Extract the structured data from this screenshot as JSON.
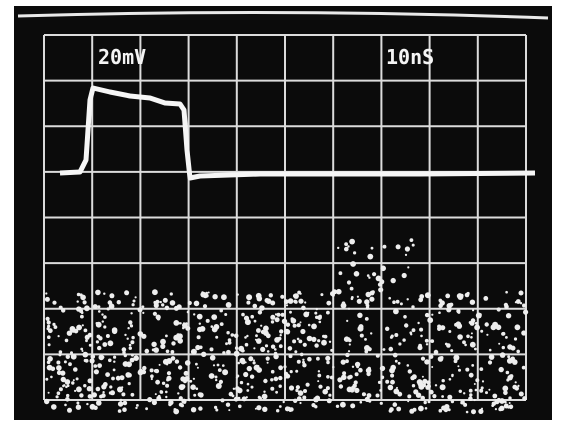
{
  "scope": {
    "volts_per_div": "20mV",
    "time_per_div": "10nS"
  }
}
